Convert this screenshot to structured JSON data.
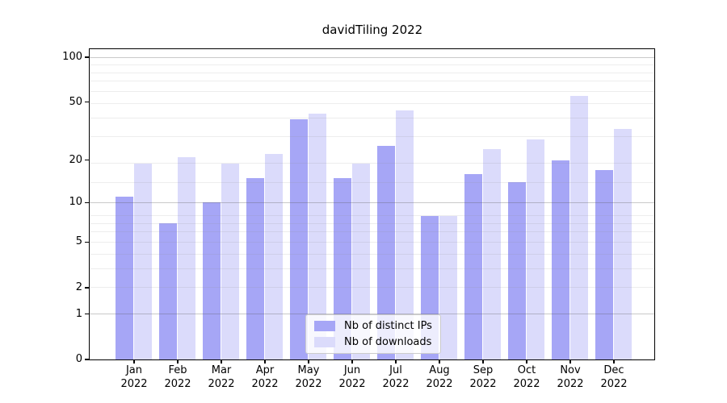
{
  "chart_data": {
    "type": "bar",
    "title": "davidTiling 2022",
    "categories": [
      "Jan",
      "Feb",
      "Mar",
      "Apr",
      "May",
      "Jun",
      "Jul",
      "Aug",
      "Sep",
      "Oct",
      "Nov",
      "Dec"
    ],
    "year_label": "2022",
    "series": [
      {
        "name": "Nb of distinct IPs",
        "color": "#a6a6f6",
        "fill": "rgba(0,0,230,0.35)",
        "values": [
          11,
          7,
          10,
          15,
          38,
          15,
          25,
          8,
          16,
          14,
          20,
          17
        ]
      },
      {
        "name": "Nb of downloads",
        "color": "#dbdbfb",
        "fill": "rgba(0,0,230,0.14)",
        "values": [
          19,
          21,
          19,
          22,
          42,
          19,
          44,
          8,
          24,
          28,
          55,
          33
        ]
      }
    ],
    "y_ticks": [
      0,
      1,
      2,
      5,
      10,
      20,
      50,
      100
    ],
    "y_scale": "log10(1+v)",
    "ylim": [
      0,
      113
    ],
    "grid": "on",
    "legend_position": "lower center",
    "axis_color": "#000000",
    "major_grid_color": "#c4c4c4",
    "minor_grid_color": "#e7e7e7"
  }
}
